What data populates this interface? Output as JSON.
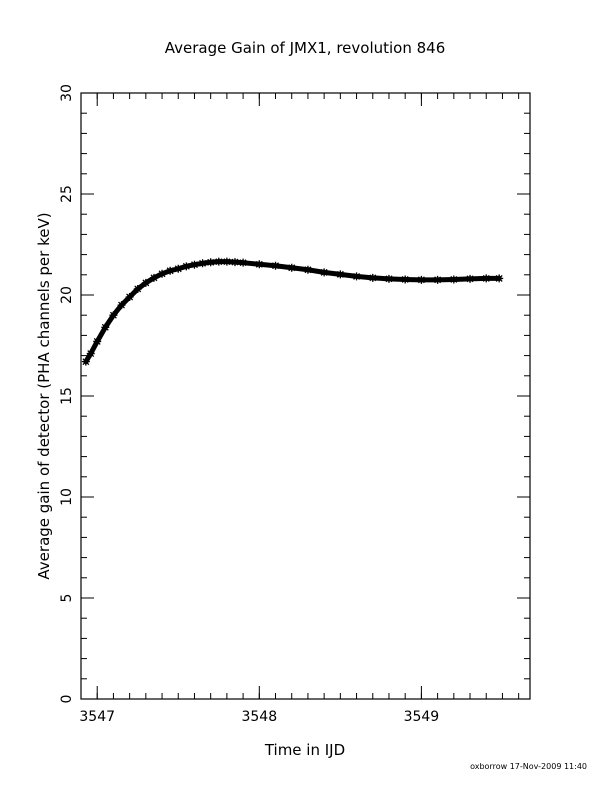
{
  "chart_data": {
    "type": "scatter",
    "title": "Average Gain of JMX1, revolution 846",
    "xlabel": "Time in IJD",
    "ylabel": "Average gain of detector (PHA channels per keV)",
    "xlim": [
      3546.9,
      3549.67
    ],
    "ylim": [
      0,
      30
    ],
    "x_major_ticks": [
      3547,
      3548,
      3549
    ],
    "x_tick_labels": [
      "3547",
      "3548",
      "3549"
    ],
    "x_minor_step": 0.1,
    "y_major_ticks": [
      0,
      5,
      10,
      15,
      20,
      25,
      30
    ],
    "y_tick_labels": [
      "0",
      "5",
      "10",
      "15",
      "20",
      "25",
      "30"
    ],
    "y_minor_step": 1,
    "grid": false,
    "marker": "star",
    "marker_color": "#000000",
    "series": [
      {
        "x": [
          3546.93,
          3546.96,
          3547.0,
          3547.05,
          3547.1,
          3547.15,
          3547.2,
          3547.25,
          3547.3,
          3547.35,
          3547.4,
          3547.45,
          3547.5,
          3547.55,
          3547.6,
          3547.65,
          3547.7,
          3547.75,
          3547.8,
          3547.85,
          3547.9,
          3548.0,
          3548.1,
          3548.2,
          3548.3,
          3548.4,
          3548.5,
          3548.6,
          3548.7,
          3548.8,
          3548.9,
          3549.0,
          3549.1,
          3549.2,
          3549.3,
          3549.4,
          3549.48
        ],
        "y": [
          16.7,
          17.1,
          17.7,
          18.4,
          19.0,
          19.5,
          19.9,
          20.3,
          20.6,
          20.85,
          21.05,
          21.2,
          21.3,
          21.42,
          21.5,
          21.57,
          21.62,
          21.65,
          21.65,
          21.63,
          21.6,
          21.52,
          21.45,
          21.35,
          21.25,
          21.12,
          21.02,
          20.92,
          20.85,
          20.8,
          20.77,
          20.75,
          20.75,
          20.77,
          20.8,
          20.82,
          20.82
        ]
      }
    ]
  },
  "footer": "oxborrow 17-Nov-2009 11:40"
}
